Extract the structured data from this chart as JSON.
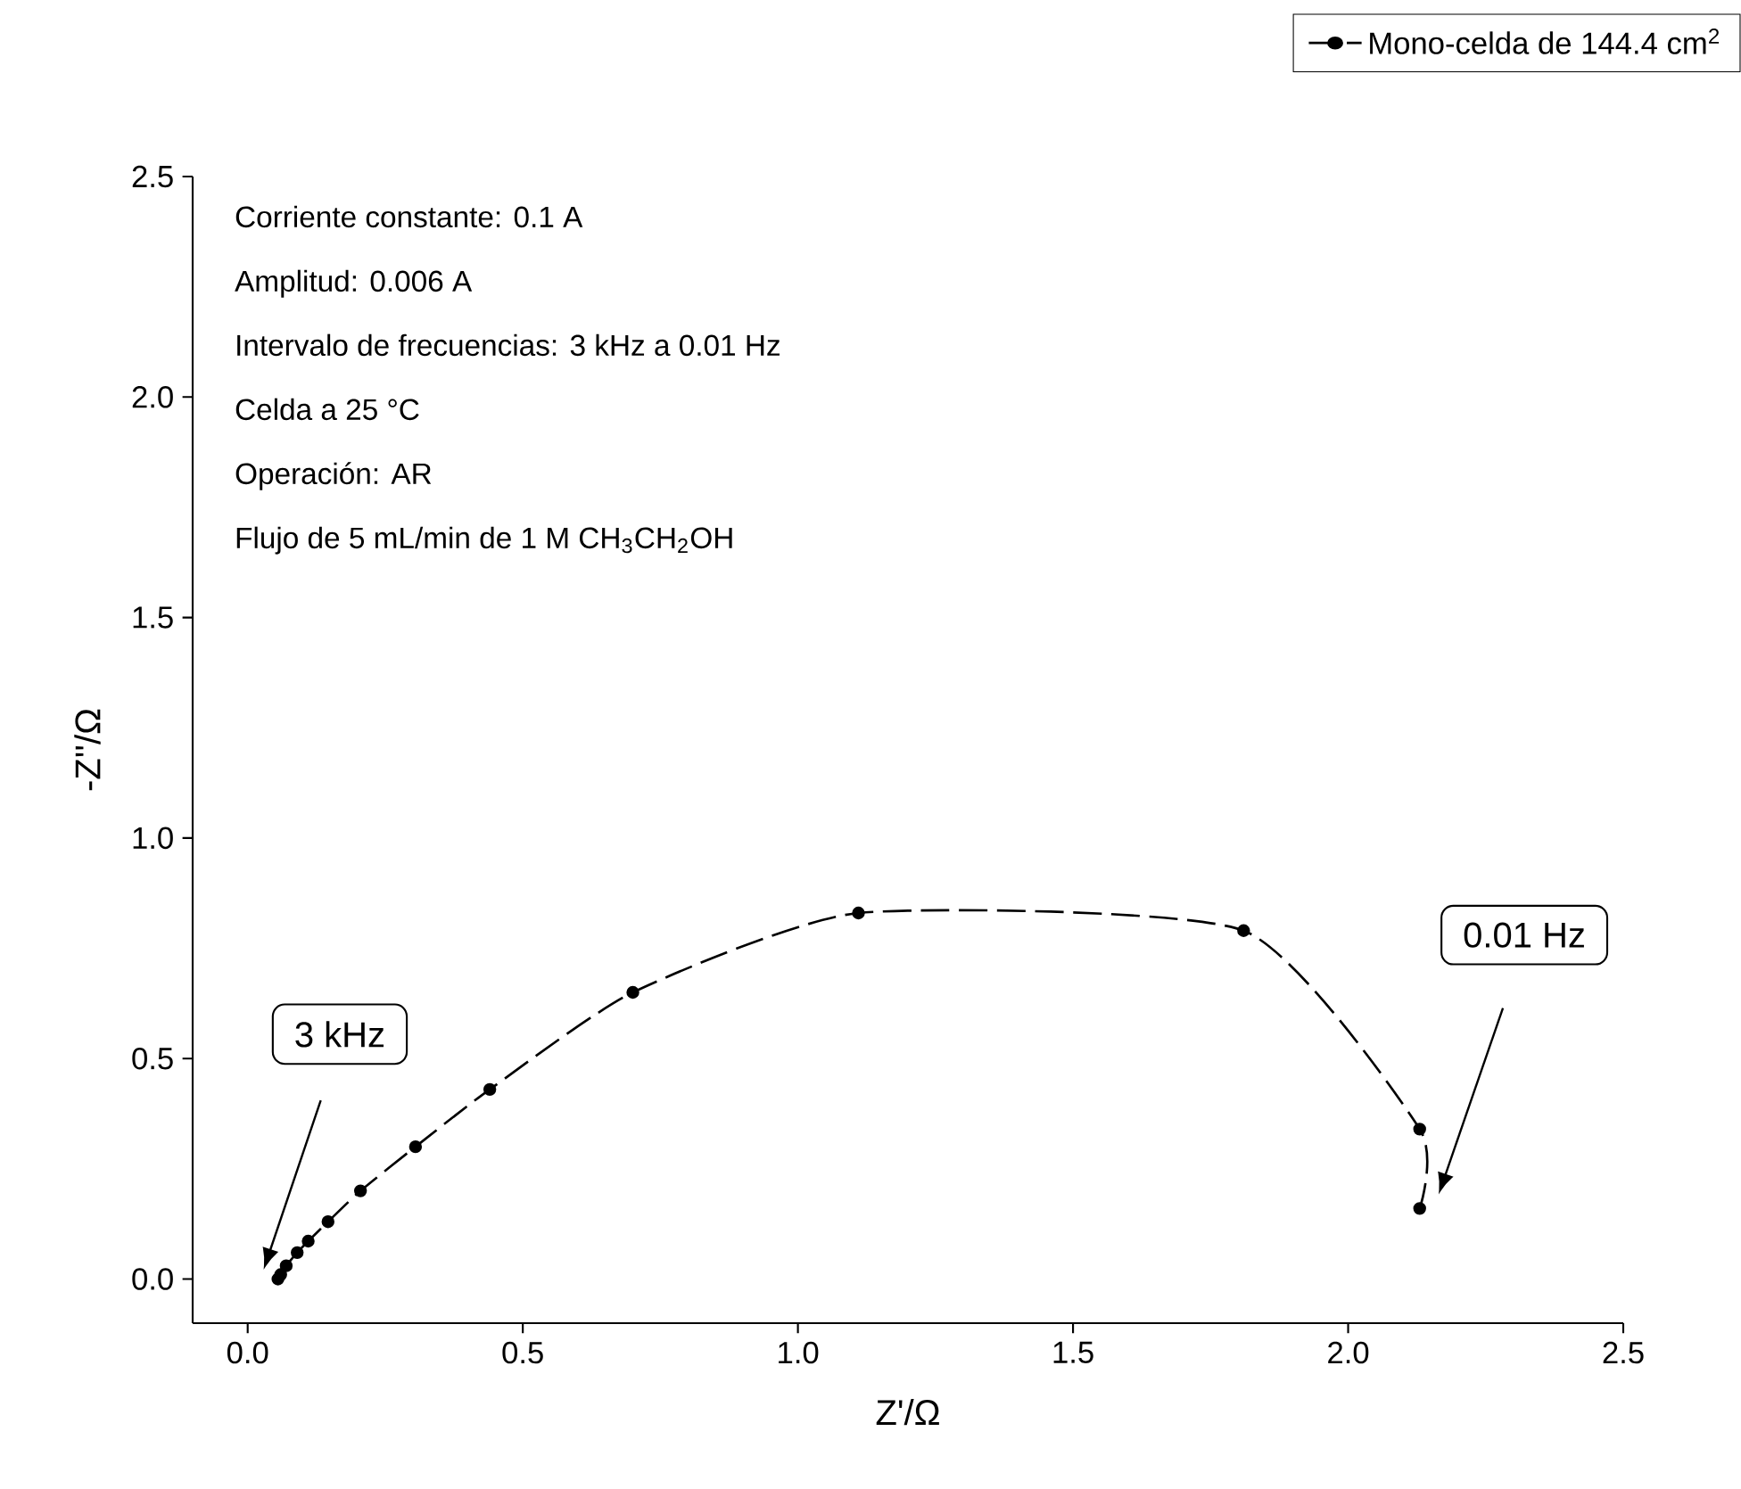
{
  "chart_data": {
    "type": "line",
    "xlabel": "Z'/Ω",
    "ylabel": "-Z''/Ω",
    "xlim": [
      -0.1,
      2.5
    ],
    "ylim": [
      -0.1,
      2.5
    ],
    "xticks": [
      {
        "value": 0,
        "label": "0.0"
      },
      {
        "value": 0.5,
        "label": "0.5"
      },
      {
        "value": 1,
        "label": "1.0"
      },
      {
        "value": 1.5,
        "label": "1.5"
      },
      {
        "value": 2,
        "label": "2.0"
      },
      {
        "value": 2.5,
        "label": "2.5"
      }
    ],
    "yticks": [
      {
        "value": 0,
        "label": "0.0"
      },
      {
        "value": 0.5,
        "label": "0.5"
      },
      {
        "value": 1,
        "label": "1.0"
      },
      {
        "value": 1.5,
        "label": "1.5"
      },
      {
        "value": 2,
        "label": "2.0"
      },
      {
        "value": 2.5,
        "label": "2.5"
      }
    ],
    "series": [
      {
        "name": "Mono-celda de 144.4 cm$^{2}$",
        "color": "#000000",
        "x": [
          0.055,
          0.06,
          0.07,
          0.09,
          0.11,
          0.146,
          0.205,
          0.305,
          0.44,
          0.7,
          1.11,
          1.81,
          2.13,
          2.13
        ],
        "values": [
          0.0,
          0.01,
          0.03,
          0.06,
          0.086,
          0.13,
          0.2,
          0.3,
          0.43,
          0.65,
          0.83,
          0.79,
          0.34,
          0.16
        ]
      }
    ],
    "marker": "circle",
    "line_style": "dashed",
    "legend": "top right",
    "annotations": [
      "Corriente constante: 0.1 A",
      "Amplitud: 0.006 A",
      "Intervalo de frecuencias: 3 kHz a 0.01 Hz",
      "Celda a 25 °C",
      "Operación: AR",
      "Flujo de 5 mL/min de 1 M CH$_{3}$CH$_{2}$OH",
      "3 kHz",
      "0.01 Hz"
    ]
  }
}
